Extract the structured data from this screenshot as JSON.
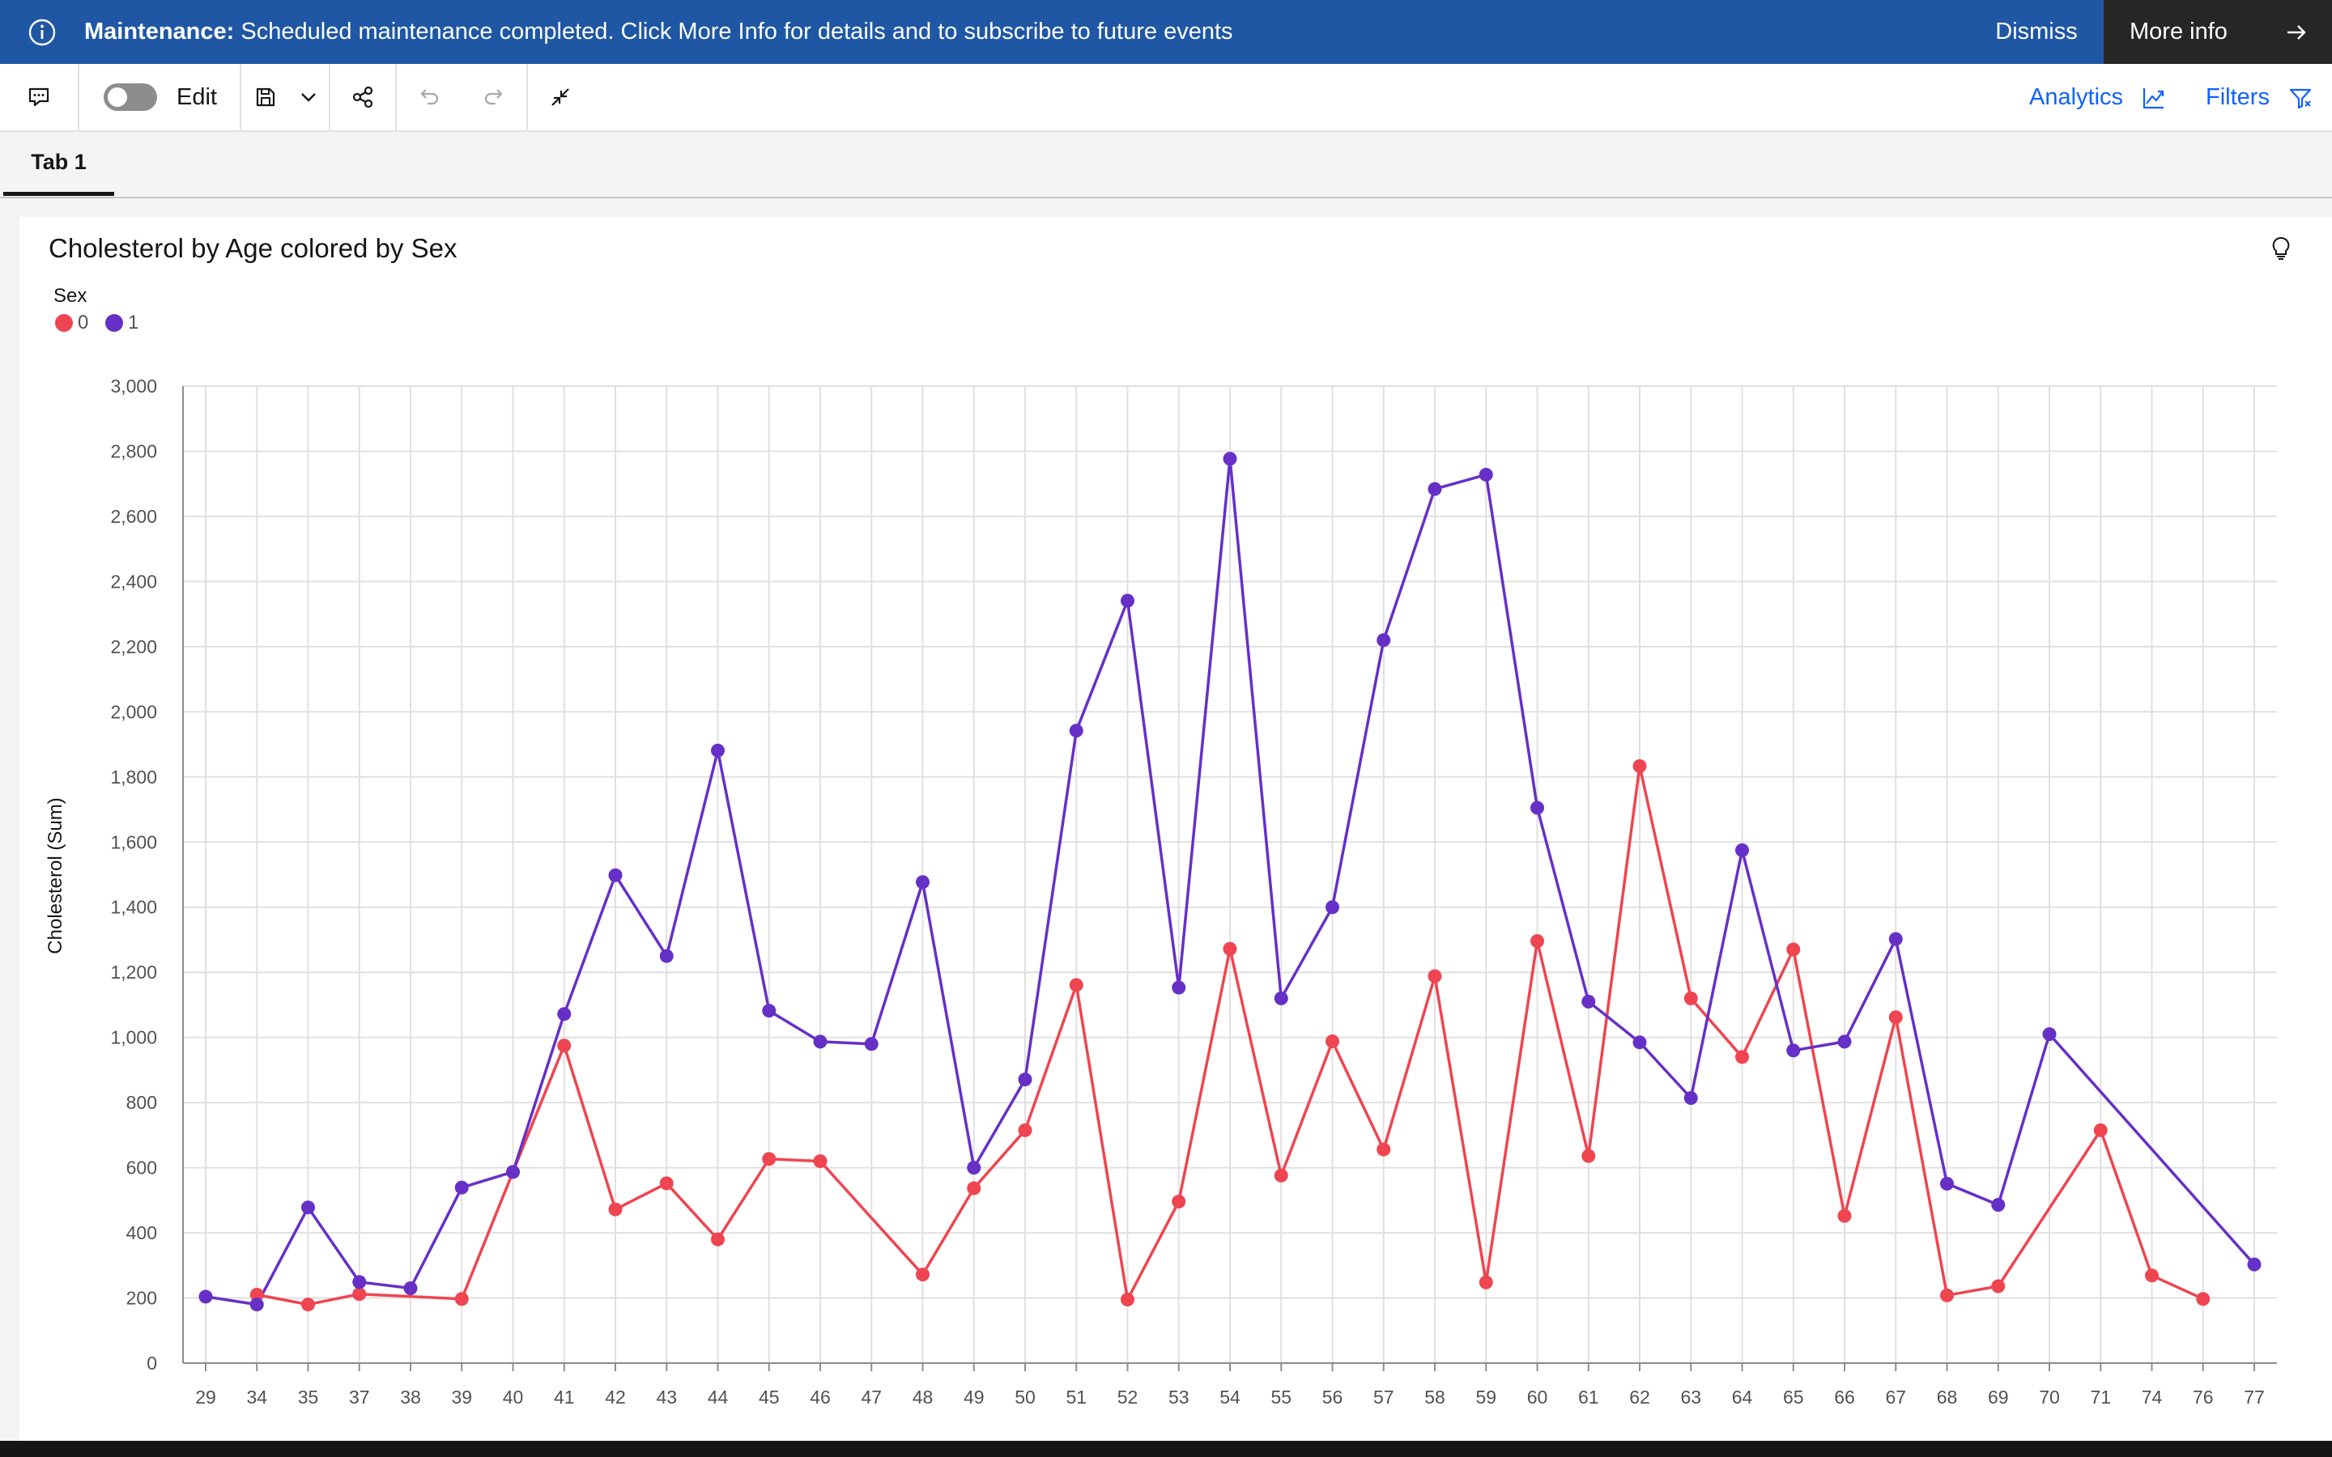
{
  "banner": {
    "title": "Maintenance:",
    "message": "Scheduled maintenance completed. Click More Info for details and to subscribe to future events",
    "dismiss_label": "Dismiss",
    "more_info_label": "More info",
    "background": "#1f57a4"
  },
  "toolbar": {
    "edit_label": "Edit",
    "analytics_label": "Analytics",
    "filters_label": "Filters",
    "icons": [
      "comment-icon",
      "toggle-switch",
      "save-icon",
      "chevron-down-icon",
      "share-icon",
      "undo-icon",
      "redo-icon",
      "collapse-icon",
      "analytics-icon",
      "filter-icon"
    ],
    "accent": "#0f62fe"
  },
  "tabs": [
    {
      "label": "Tab 1",
      "active": true
    }
  ],
  "card": {
    "title": "Cholesterol by Age colored by Sex",
    "legend_title": "Sex"
  },
  "chart_data": {
    "type": "line",
    "title": "Cholesterol by Age colored by Sex",
    "xlabel": "",
    "ylabel": "Cholesterol (Sum)",
    "legend_title": "Sex",
    "legend_position": "top-left",
    "grid": true,
    "ylim": [
      0,
      3000
    ],
    "yticks": [
      0,
      200,
      400,
      600,
      800,
      1000,
      1200,
      1400,
      1600,
      1800,
      2000,
      2200,
      2400,
      2600,
      2800,
      3000
    ],
    "categories": [
      "29",
      "34",
      "35",
      "37",
      "38",
      "39",
      "40",
      "41",
      "42",
      "43",
      "44",
      "45",
      "46",
      "47",
      "48",
      "49",
      "50",
      "51",
      "52",
      "53",
      "54",
      "55",
      "56",
      "57",
      "58",
      "59",
      "60",
      "61",
      "62",
      "63",
      "64",
      "65",
      "66",
      "67",
      "68",
      "69",
      "70",
      "71",
      "74",
      "76",
      "77"
    ],
    "series": [
      {
        "name": "0",
        "color": "#ee4550",
        "values": [
          null,
          210,
          180,
          212,
          null,
          197,
          587,
          975,
          472,
          552,
          380,
          627,
          620,
          null,
          272,
          537,
          715,
          1161,
          195,
          496,
          1272,
          576,
          988,
          656,
          1188,
          248,
          1296,
          636,
          1833,
          1120,
          940,
          1270,
          452,
          1062,
          208,
          236,
          null,
          715,
          269,
          197,
          null
        ]
      },
      {
        "name": "1",
        "color": "#6630c7",
        "values": [
          204,
          180,
          478,
          249,
          230,
          539,
          587,
          1072,
          1498,
          1250,
          1881,
          1082,
          987,
          980,
          1477,
          600,
          871,
          1942,
          2341,
          1153,
          2777,
          1120,
          1400,
          2220,
          2684,
          2728,
          1705,
          1110,
          985,
          814,
          1575,
          960,
          987,
          1302,
          551,
          486,
          1010,
          null,
          null,
          null,
          303
        ]
      }
    ]
  }
}
